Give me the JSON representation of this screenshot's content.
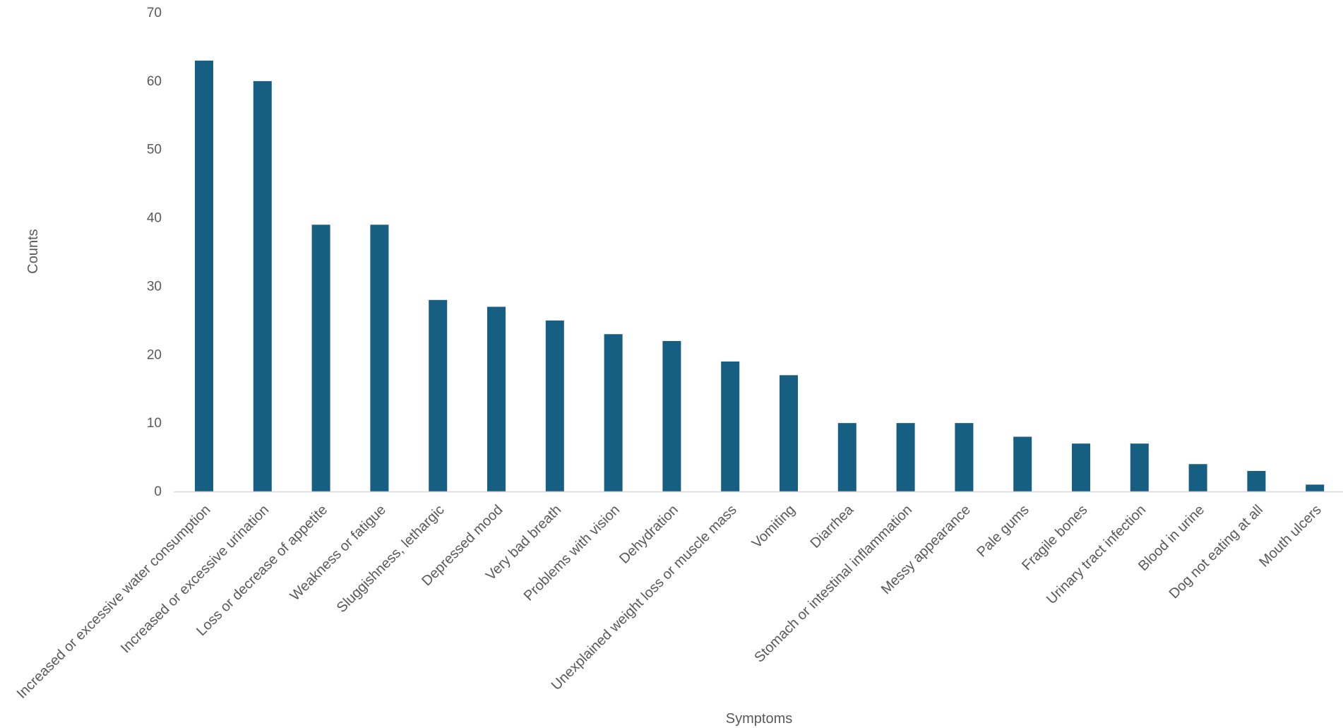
{
  "chart_data": {
    "type": "bar",
    "title": "",
    "xlabel": "Symptoms",
    "ylabel": "Counts",
    "ylim": [
      0,
      70
    ],
    "yticks": [
      0,
      10,
      20,
      30,
      40,
      50,
      60,
      70
    ],
    "grid": false,
    "legend": "none",
    "bar_color": "#175f82",
    "axis_color": "#d9d9d9",
    "text_color": "#595959",
    "categories": [
      "Increased or excessive water consumption",
      "Increased or excessive urination",
      "Loss or decrease of appetite",
      "Weakness or fatigue",
      "Sluggishness, lethargic",
      "Depressed mood",
      "Very bad breath",
      "Problems with vision",
      "Dehydration",
      "Unexplained weight loss or muscle mass",
      "Vomiting",
      "Diarrhea",
      "Stomach or intestinal inflammation",
      "Messy appearance",
      "Pale gums",
      "Fragile bones",
      "Urinary tract infection",
      "Blood in urine",
      "Dog not eating at all",
      "Mouth ulcers"
    ],
    "values": [
      63,
      60,
      39,
      39,
      28,
      27,
      25,
      23,
      22,
      19,
      17,
      10,
      10,
      10,
      8,
      7,
      7,
      4,
      3,
      1
    ]
  }
}
